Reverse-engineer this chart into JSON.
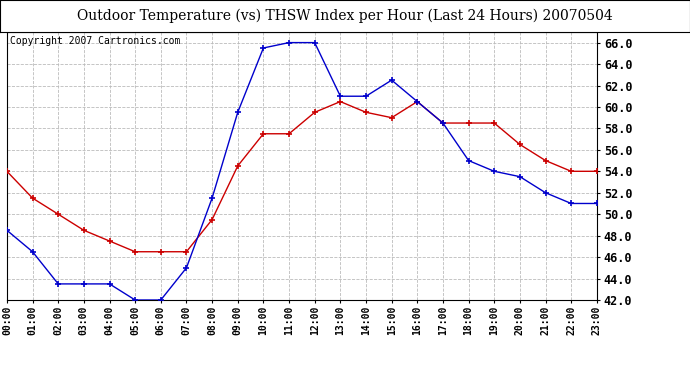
{
  "title": "Outdoor Temperature (vs) THSW Index per Hour (Last 24 Hours) 20070504",
  "copyright": "Copyright 2007 Cartronics.com",
  "hours": [
    0,
    1,
    2,
    3,
    4,
    5,
    6,
    7,
    8,
    9,
    10,
    11,
    12,
    13,
    14,
    15,
    16,
    17,
    18,
    19,
    20,
    21,
    22,
    23
  ],
  "temp": [
    54.0,
    51.5,
    50.0,
    48.5,
    47.5,
    46.5,
    46.5,
    46.5,
    49.5,
    54.5,
    57.5,
    57.5,
    59.5,
    60.5,
    59.5,
    59.0,
    60.5,
    58.5,
    58.5,
    58.5,
    56.5,
    55.0,
    54.0,
    54.0
  ],
  "thsw": [
    48.5,
    46.5,
    43.5,
    43.5,
    43.5,
    42.0,
    42.0,
    45.0,
    51.5,
    59.5,
    65.5,
    66.0,
    66.0,
    61.0,
    61.0,
    62.5,
    60.5,
    58.5,
    55.0,
    54.0,
    53.5,
    52.0,
    51.0,
    51.0
  ],
  "temp_color": "#cc0000",
  "thsw_color": "#0000cc",
  "ylim_min": 42.0,
  "ylim_max": 67.0,
  "yticks": [
    42.0,
    44.0,
    46.0,
    48.0,
    50.0,
    52.0,
    54.0,
    56.0,
    58.0,
    60.0,
    62.0,
    64.0,
    66.0
  ],
  "bg_color": "#ffffff",
  "plot_bg_color": "#ffffff",
  "grid_color": "#bbbbbb",
  "title_fontsize": 10,
  "copyright_fontsize": 7
}
